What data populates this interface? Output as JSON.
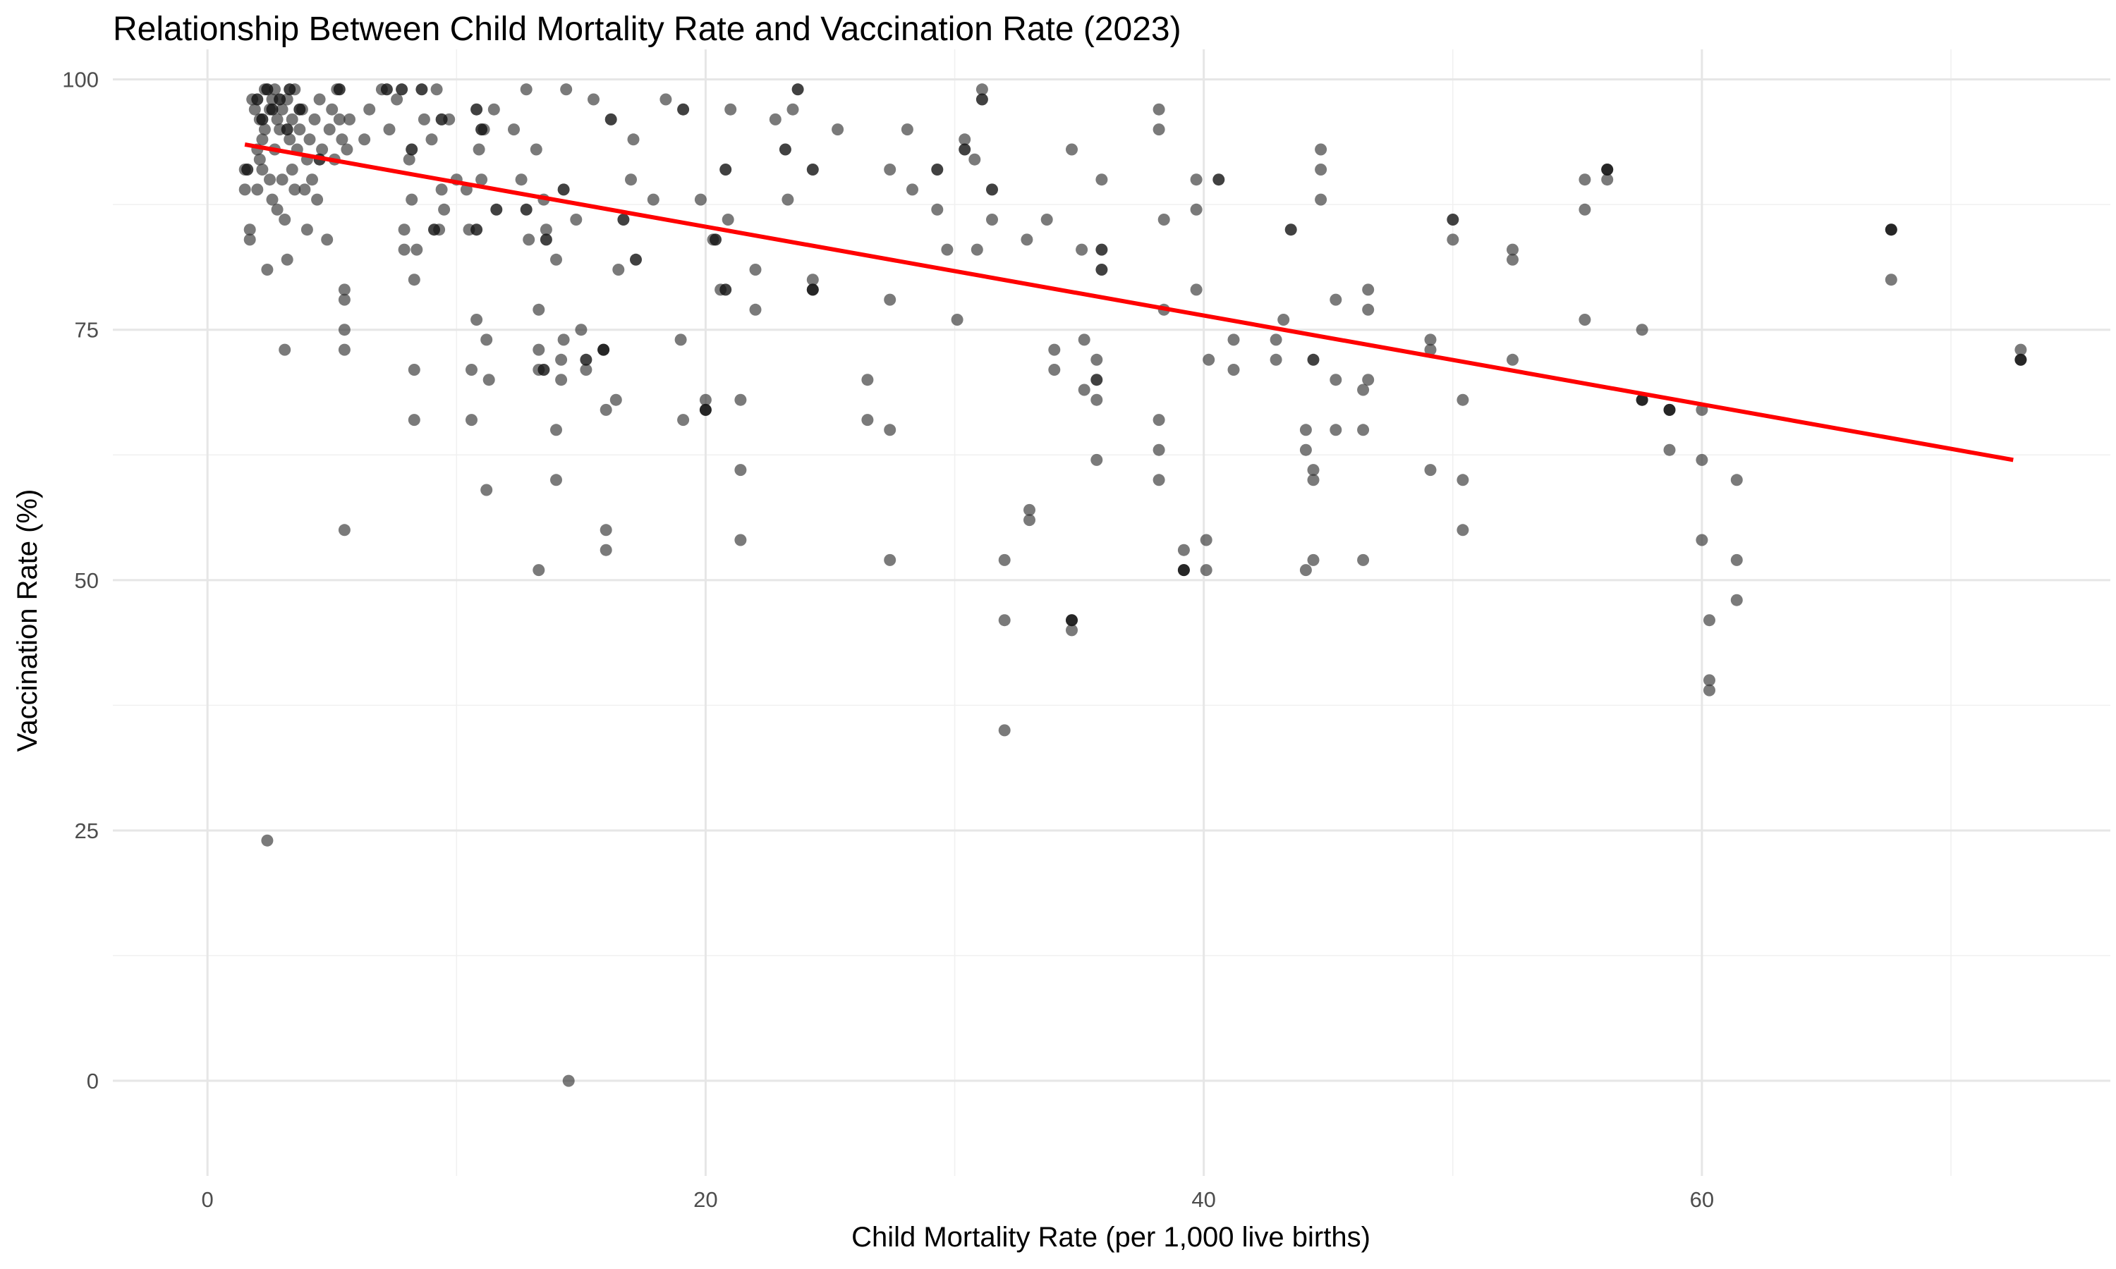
{
  "chart_data": {
    "type": "scatter",
    "title": "Relationship Between Child Mortality Rate and Vaccination Rate (2023)",
    "xlabel": "Child Mortality Rate (per 1,000 live births)",
    "ylabel": "Vaccination Rate (%)",
    "xlim": [
      -3.8,
      76.4
    ],
    "ylim": [
      -9.5,
      103.0
    ],
    "x_ticks": [
      0,
      20,
      40,
      60
    ],
    "y_ticks": [
      0,
      25,
      50,
      75,
      100
    ],
    "x_minor_ticks": [
      10,
      30,
      50,
      70
    ],
    "y_minor_ticks": [
      12.5,
      37.5,
      62.5,
      87.5
    ],
    "grid": true,
    "point_color": "#333333",
    "point_alpha": 0.65,
    "trend_line": {
      "type": "linear",
      "color": "#ff0000",
      "x": [
        1.5,
        72.5
      ],
      "y": [
        93.5,
        62.0
      ]
    },
    "points": [
      [
        1.5,
        91
      ],
      [
        1.5,
        89
      ],
      [
        1.7,
        85
      ],
      [
        1.7,
        84
      ],
      [
        1.8,
        98
      ],
      [
        1.9,
        97
      ],
      [
        2.0,
        93
      ],
      [
        2.0,
        89
      ],
      [
        2.1,
        96
      ],
      [
        2.1,
        92
      ],
      [
        2.2,
        94
      ],
      [
        2.2,
        91
      ],
      [
        2.3,
        99
      ],
      [
        2.3,
        95
      ],
      [
        2.4,
        81
      ],
      [
        2.4,
        24
      ],
      [
        2.5,
        97
      ],
      [
        2.5,
        90
      ],
      [
        2.6,
        98
      ],
      [
        2.6,
        88
      ],
      [
        2.7,
        99
      ],
      [
        2.7,
        93
      ],
      [
        2.8,
        96
      ],
      [
        2.8,
        87
      ],
      [
        2.9,
        95
      ],
      [
        3.0,
        97
      ],
      [
        3.0,
        90
      ],
      [
        3.1,
        86
      ],
      [
        3.1,
        73
      ],
      [
        3.2,
        98
      ],
      [
        3.2,
        82
      ],
      [
        3.3,
        94
      ],
      [
        3.4,
        96
      ],
      [
        3.4,
        91
      ],
      [
        3.5,
        99
      ],
      [
        3.5,
        89
      ],
      [
        3.6,
        93
      ],
      [
        3.7,
        95
      ],
      [
        3.8,
        97
      ],
      [
        3.9,
        89
      ],
      [
        4.0,
        85
      ],
      [
        4.0,
        92
      ],
      [
        4.1,
        94
      ],
      [
        4.2,
        90
      ],
      [
        4.3,
        96
      ],
      [
        4.4,
        88
      ],
      [
        4.5,
        98
      ],
      [
        4.6,
        93
      ],
      [
        4.8,
        84
      ],
      [
        4.9,
        95
      ],
      [
        5.0,
        97
      ],
      [
        5.1,
        92
      ],
      [
        5.2,
        99
      ],
      [
        5.3,
        96
      ],
      [
        5.4,
        94
      ],
      [
        5.5,
        79
      ],
      [
        5.5,
        78
      ],
      [
        5.5,
        75
      ],
      [
        5.5,
        73
      ],
      [
        5.5,
        55
      ],
      [
        5.6,
        93
      ],
      [
        5.7,
        96
      ],
      [
        6.3,
        94
      ],
      [
        6.5,
        97
      ],
      [
        7.0,
        99
      ],
      [
        7.3,
        95
      ],
      [
        7.6,
        98
      ],
      [
        7.9,
        85
      ],
      [
        7.9,
        83
      ],
      [
        8.1,
        92
      ],
      [
        8.2,
        88
      ],
      [
        8.3,
        80
      ],
      [
        8.3,
        71
      ],
      [
        8.3,
        66
      ],
      [
        8.4,
        83
      ],
      [
        8.7,
        96
      ],
      [
        9.0,
        94
      ],
      [
        9.2,
        99
      ],
      [
        9.3,
        85
      ],
      [
        9.4,
        89
      ],
      [
        9.5,
        87
      ],
      [
        9.7,
        96
      ],
      [
        10.0,
        90
      ],
      [
        10.4,
        89
      ],
      [
        10.5,
        85
      ],
      [
        10.6,
        71
      ],
      [
        10.6,
        66
      ],
      [
        10.8,
        76
      ],
      [
        10.9,
        93
      ],
      [
        11.0,
        90
      ],
      [
        11.1,
        95
      ],
      [
        11.2,
        74
      ],
      [
        11.2,
        59
      ],
      [
        11.3,
        70
      ],
      [
        11.5,
        97
      ],
      [
        12.3,
        95
      ],
      [
        12.6,
        90
      ],
      [
        12.8,
        99
      ],
      [
        12.9,
        84
      ],
      [
        13.2,
        93
      ],
      [
        13.3,
        77
      ],
      [
        13.3,
        73
      ],
      [
        13.3,
        71
      ],
      [
        13.3,
        51
      ],
      [
        13.5,
        88
      ],
      [
        13.6,
        85
      ],
      [
        14.0,
        82
      ],
      [
        14.0,
        65
      ],
      [
        14.0,
        60
      ],
      [
        14.2,
        72
      ],
      [
        14.2,
        70
      ],
      [
        14.3,
        74
      ],
      [
        14.4,
        99
      ],
      [
        14.5,
        0
      ],
      [
        14.8,
        86
      ],
      [
        15.0,
        75
      ],
      [
        15.2,
        71
      ],
      [
        15.5,
        98
      ],
      [
        15.9,
        73
      ],
      [
        16.0,
        67
      ],
      [
        16.0,
        55
      ],
      [
        16.0,
        53
      ],
      [
        16.4,
        68
      ],
      [
        16.5,
        81
      ],
      [
        17.0,
        90
      ],
      [
        17.1,
        94
      ],
      [
        17.9,
        88
      ],
      [
        18.4,
        98
      ],
      [
        19.0,
        74
      ],
      [
        19.1,
        66
      ],
      [
        19.8,
        88
      ],
      [
        20.0,
        68
      ],
      [
        20.0,
        67
      ],
      [
        20.3,
        84
      ],
      [
        20.6,
        79
      ],
      [
        20.9,
        86
      ],
      [
        21.0,
        97
      ],
      [
        21.4,
        68
      ],
      [
        21.4,
        61
      ],
      [
        21.4,
        54
      ],
      [
        22.0,
        81
      ],
      [
        22.0,
        77
      ],
      [
        22.8,
        96
      ],
      [
        23.3,
        88
      ],
      [
        23.5,
        97
      ],
      [
        24.3,
        80
      ],
      [
        24.3,
        79
      ],
      [
        25.3,
        95
      ],
      [
        26.5,
        70
      ],
      [
        26.5,
        66
      ],
      [
        27.4,
        91
      ],
      [
        27.4,
        78
      ],
      [
        27.4,
        65
      ],
      [
        27.4,
        52
      ],
      [
        28.1,
        95
      ],
      [
        28.3,
        89
      ],
      [
        29.3,
        87
      ],
      [
        29.7,
        83
      ],
      [
        30.1,
        76
      ],
      [
        30.4,
        94
      ],
      [
        30.8,
        92
      ],
      [
        30.9,
        83
      ],
      [
        31.1,
        99
      ],
      [
        31.5,
        86
      ],
      [
        32.0,
        52
      ],
      [
        32.0,
        46
      ],
      [
        32.0,
        35
      ],
      [
        32.9,
        84
      ],
      [
        33.0,
        57
      ],
      [
        33.0,
        56
      ],
      [
        33.7,
        86
      ],
      [
        34.0,
        73
      ],
      [
        34.0,
        71
      ],
      [
        34.7,
        93
      ],
      [
        34.7,
        46
      ],
      [
        34.7,
        45
      ],
      [
        35.1,
        83
      ],
      [
        35.2,
        74
      ],
      [
        35.2,
        69
      ],
      [
        35.7,
        72
      ],
      [
        35.7,
        68
      ],
      [
        35.7,
        62
      ],
      [
        35.9,
        90
      ],
      [
        38.2,
        97
      ],
      [
        38.2,
        95
      ],
      [
        38.2,
        66
      ],
      [
        38.2,
        63
      ],
      [
        38.2,
        60
      ],
      [
        38.4,
        86
      ],
      [
        38.4,
        77
      ],
      [
        39.2,
        53
      ],
      [
        39.2,
        51
      ],
      [
        39.7,
        90
      ],
      [
        39.7,
        87
      ],
      [
        39.7,
        79
      ],
      [
        40.1,
        54
      ],
      [
        40.1,
        51
      ],
      [
        40.2,
        72
      ],
      [
        41.2,
        74
      ],
      [
        41.2,
        71
      ],
      [
        42.9,
        74
      ],
      [
        42.9,
        72
      ],
      [
        43.2,
        76
      ],
      [
        44.1,
        65
      ],
      [
        44.1,
        63
      ],
      [
        44.1,
        51
      ],
      [
        44.4,
        61
      ],
      [
        44.4,
        60
      ],
      [
        44.4,
        52
      ],
      [
        44.7,
        93
      ],
      [
        44.7,
        91
      ],
      [
        44.7,
        88
      ],
      [
        45.3,
        78
      ],
      [
        45.3,
        70
      ],
      [
        45.3,
        65
      ],
      [
        46.4,
        69
      ],
      [
        46.4,
        65
      ],
      [
        46.4,
        52
      ],
      [
        46.6,
        79
      ],
      [
        46.6,
        77
      ],
      [
        46.6,
        70
      ],
      [
        49.1,
        74
      ],
      [
        49.1,
        73
      ],
      [
        49.1,
        61
      ],
      [
        50.0,
        84
      ],
      [
        50.4,
        68
      ],
      [
        50.4,
        60
      ],
      [
        50.4,
        55
      ],
      [
        52.4,
        83
      ],
      [
        52.4,
        82
      ],
      [
        52.4,
        72
      ],
      [
        55.3,
        90
      ],
      [
        55.3,
        87
      ],
      [
        55.3,
        76
      ],
      [
        56.2,
        91
      ],
      [
        56.2,
        90
      ],
      [
        57.6,
        75
      ],
      [
        57.6,
        68
      ],
      [
        58.7,
        67
      ],
      [
        58.7,
        63
      ],
      [
        60.0,
        67
      ],
      [
        60.0,
        62
      ],
      [
        60.0,
        54
      ],
      [
        60.3,
        46
      ],
      [
        60.3,
        40
      ],
      [
        60.3,
        39
      ],
      [
        61.4,
        60
      ],
      [
        61.4,
        52
      ],
      [
        61.4,
        48
      ],
      [
        67.6,
        85
      ],
      [
        67.6,
        80
      ],
      [
        72.8,
        73
      ],
      [
        72.8,
        72
      ]
    ],
    "dense_points": [
      [
        1.6,
        91
      ],
      [
        2.0,
        98
      ],
      [
        2.2,
        96
      ],
      [
        2.4,
        99
      ],
      [
        2.6,
        97
      ],
      [
        2.9,
        98
      ],
      [
        3.2,
        95
      ],
      [
        3.3,
        99
      ],
      [
        3.7,
        97
      ],
      [
        4.5,
        92
      ],
      [
        5.3,
        99
      ],
      [
        7.2,
        99
      ],
      [
        7.8,
        99
      ],
      [
        8.2,
        93
      ],
      [
        8.6,
        99
      ],
      [
        9.1,
        85
      ],
      [
        9.4,
        96
      ],
      [
        10.8,
        85
      ],
      [
        10.8,
        97
      ],
      [
        11.0,
        95
      ],
      [
        11.6,
        87
      ],
      [
        12.8,
        87
      ],
      [
        13.5,
        71
      ],
      [
        13.6,
        84
      ],
      [
        14.3,
        89
      ],
      [
        15.2,
        72
      ],
      [
        15.9,
        73
      ],
      [
        16.2,
        96
      ],
      [
        16.7,
        86
      ],
      [
        17.2,
        82
      ],
      [
        19.1,
        97
      ],
      [
        20.0,
        67
      ],
      [
        20.4,
        84
      ],
      [
        20.8,
        91
      ],
      [
        20.8,
        79
      ],
      [
        23.2,
        93
      ],
      [
        23.7,
        99
      ],
      [
        24.3,
        91
      ],
      [
        24.3,
        79
      ],
      [
        29.3,
        91
      ],
      [
        30.4,
        93
      ],
      [
        31.1,
        98
      ],
      [
        31.5,
        89
      ],
      [
        34.7,
        46
      ],
      [
        35.7,
        70
      ],
      [
        35.9,
        83
      ],
      [
        35.9,
        81
      ],
      [
        39.2,
        51
      ],
      [
        40.6,
        90
      ],
      [
        43.5,
        85
      ],
      [
        44.4,
        72
      ],
      [
        50.0,
        86
      ],
      [
        56.2,
        91
      ],
      [
        57.6,
        68
      ],
      [
        58.7,
        67
      ],
      [
        67.6,
        85
      ],
      [
        72.8,
        72
      ]
    ],
    "dense_color": "#111111"
  }
}
